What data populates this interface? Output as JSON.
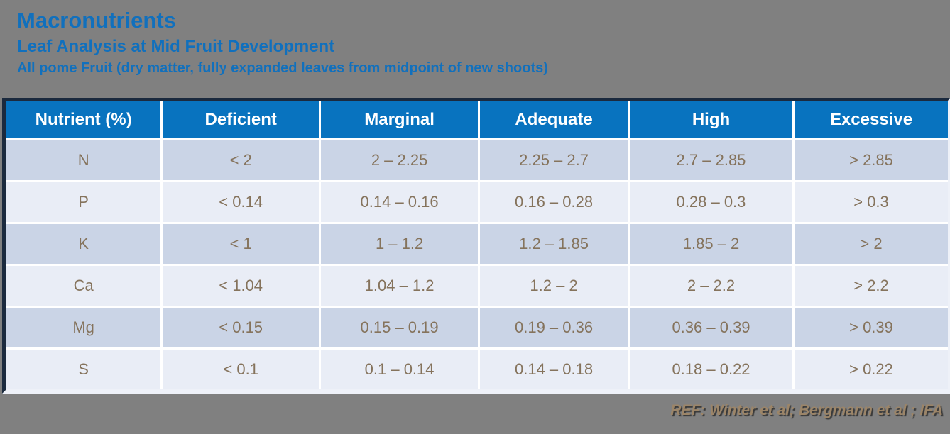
{
  "page": {
    "title": "Macronutrients",
    "subtitle": "Leaf Analysis at Mid Fruit Development",
    "note": "All pome Fruit (dry matter, fully expanded leaves from midpoint of new shoots)",
    "footer_ref": "REF: Winter et al; Bergmann et al ; IFA"
  },
  "colors": {
    "background": "#808080",
    "title_blue": "#1170bd",
    "header_fill": "#0873bf",
    "row_odd": "#cad4e6",
    "row_even": "#e9edf6",
    "cell_text": "#85735c",
    "border_dark": "#1b2a3e",
    "footer_tan": "#9c8568"
  },
  "table": {
    "headers": [
      "Nutrient (%)",
      "Deficient",
      "Marginal",
      "Adequate",
      "High",
      "Excessive"
    ],
    "column_keys": [
      "nutrient",
      "deficient",
      "marginal",
      "adequate",
      "high",
      "excessive"
    ],
    "rows": [
      {
        "nutrient": "N",
        "deficient": "< 2",
        "marginal": "2 – 2.25",
        "adequate": "2.25 – 2.7",
        "high": "2.7 – 2.85",
        "excessive": "> 2.85"
      },
      {
        "nutrient": "P",
        "deficient": "< 0.14",
        "marginal": "0.14 – 0.16",
        "adequate": "0.16 – 0.28",
        "high": "0.28 – 0.3",
        "excessive": "> 0.3"
      },
      {
        "nutrient": "K",
        "deficient": "< 1",
        "marginal": "1 – 1.2",
        "adequate": "1.2 – 1.85",
        "high": "1.85 – 2",
        "excessive": "> 2"
      },
      {
        "nutrient": "Ca",
        "deficient": "< 1.04",
        "marginal": "1.04 – 1.2",
        "adequate": "1.2 – 2",
        "high": "2 – 2.2",
        "excessive": "> 2.2"
      },
      {
        "nutrient": "Mg",
        "deficient": "< 0.15",
        "marginal": "0.15 – 0.19",
        "adequate": "0.19 – 0.36",
        "high": "0.36 – 0.39",
        "excessive": "> 0.39"
      },
      {
        "nutrient": "S",
        "deficient": "< 0.1",
        "marginal": "0.1 – 0.14",
        "adequate": "0.14 – 0.18",
        "high": "0.18 – 0.22",
        "excessive": "> 0.22"
      }
    ]
  }
}
